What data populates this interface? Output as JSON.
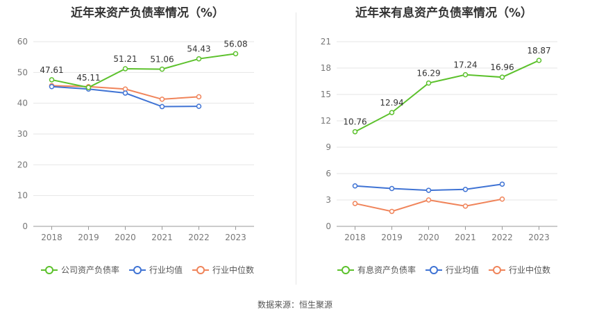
{
  "source_label": "数据来源：恒生聚源",
  "chart_data": [
    {
      "type": "line",
      "title": "近年来资产负债率情况（%）",
      "categories": [
        "2018",
        "2019",
        "2020",
        "2021",
        "2022",
        "2023"
      ],
      "ylim": [
        0,
        60
      ],
      "yticks": [
        0,
        10,
        20,
        30,
        40,
        50,
        60
      ],
      "grid": true,
      "legend_position": "bottom",
      "series": [
        {
          "name": "公司资产负债率",
          "color": "#5cc12c",
          "values": [
            47.61,
            45.11,
            51.21,
            51.06,
            54.43,
            56.08
          ],
          "labels": true,
          "labels_text": [
            "47.61",
            "45.11",
            "51.21",
            "51.06",
            "54.43",
            "56.08"
          ]
        },
        {
          "name": "行业均值",
          "color": "#3f73d4",
          "values": [
            45.4,
            44.6,
            43.3,
            38.9,
            39.0,
            null
          ],
          "labels": false
        },
        {
          "name": "行业中位数",
          "color": "#f0845a",
          "values": [
            45.7,
            45.4,
            44.6,
            41.3,
            42.1,
            null
          ],
          "labels": false
        }
      ]
    },
    {
      "type": "line",
      "title": "近年来有息资产负债率情况（%）",
      "categories": [
        "2018",
        "2019",
        "2020",
        "2021",
        "2022",
        "2023"
      ],
      "ylim": [
        0,
        21
      ],
      "yticks": [
        0,
        3,
        6,
        9,
        12,
        15,
        18,
        21
      ],
      "grid": true,
      "legend_position": "bottom",
      "series": [
        {
          "name": "有息资产负债率",
          "color": "#5cc12c",
          "values": [
            10.76,
            12.94,
            16.29,
            17.24,
            16.96,
            18.87
          ],
          "labels": true,
          "labels_text": [
            "10.76",
            "12.94",
            "16.29",
            "17.24",
            "16.96",
            "18.87"
          ]
        },
        {
          "name": "行业均值",
          "color": "#3f73d4",
          "values": [
            4.6,
            4.3,
            4.1,
            4.2,
            4.8,
            null
          ],
          "labels": false
        },
        {
          "name": "行业中位数",
          "color": "#f0845a",
          "values": [
            2.6,
            1.7,
            3.0,
            2.3,
            3.1,
            null
          ],
          "labels": false
        }
      ]
    }
  ]
}
